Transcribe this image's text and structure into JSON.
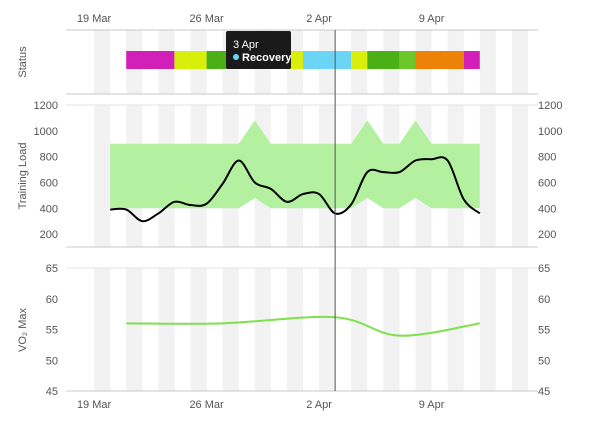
{
  "colors": {
    "band": "#b3f0a0",
    "training_line": "#000000",
    "vo2_line": "#7ee04a",
    "grid_bg": "#f2f2f2",
    "tooltip_bg": "#1a1a1a",
    "tooltip_text": "#ffffff",
    "recovery_dot": "#6cd4f5"
  },
  "tooltip": {
    "date": "3 Apr",
    "label": "Recovery"
  },
  "chart_data": [
    {
      "type": "timeline",
      "panel": "status",
      "ylabel": "Status",
      "x_ticks": [
        "19 Mar",
        "26 Mar",
        "2 Apr",
        "9 Apr"
      ],
      "x_tick_dates": [
        "2018-03-19",
        "2018-03-26",
        "2018-04-02",
        "2018-04-09"
      ],
      "crosshair_date": "2018-04-03",
      "segments": [
        {
          "start": "2018-03-21",
          "end": "2018-03-24",
          "color": "#d21fb7"
        },
        {
          "start": "2018-03-24",
          "end": "2018-03-26",
          "color": "#d8ef0b"
        },
        {
          "start": "2018-03-26",
          "end": "2018-03-28",
          "color": "#4caf16"
        },
        {
          "start": "2018-03-28",
          "end": "2018-03-31",
          "color": "#6cc72a"
        },
        {
          "start": "2018-03-31",
          "end": "2018-04-01",
          "color": "#d8ef0b"
        },
        {
          "start": "2018-04-01",
          "end": "2018-04-04",
          "color": "#6cd4f5"
        },
        {
          "start": "2018-04-04",
          "end": "2018-04-05",
          "color": "#d8ef0b"
        },
        {
          "start": "2018-04-05",
          "end": "2018-04-07",
          "color": "#4caf16"
        },
        {
          "start": "2018-04-07",
          "end": "2018-04-08",
          "color": "#6cc72a"
        },
        {
          "start": "2018-04-08",
          "end": "2018-04-11",
          "color": "#ee8208"
        },
        {
          "start": "2018-04-11",
          "end": "2018-04-12",
          "color": "#d21fb7"
        }
      ]
    },
    {
      "type": "line",
      "panel": "training-load",
      "ylabel": "Training Load",
      "ylim": [
        100,
        1200
      ],
      "y_ticks": [
        200,
        400,
        600,
        800,
        1000,
        1200
      ],
      "band": {
        "x": [
          "2018-03-20",
          "2018-03-28",
          "2018-03-29",
          "2018-03-30",
          "2018-04-04",
          "2018-04-05",
          "2018-04-06",
          "2018-04-07",
          "2018-04-08",
          "2018-04-09",
          "2018-04-12"
        ],
        "low": [
          400,
          400,
          480,
          400,
          400,
          480,
          400,
          400,
          480,
          400,
          400
        ],
        "high": [
          900,
          900,
          1080,
          900,
          900,
          1080,
          900,
          900,
          1080,
          900,
          900
        ]
      },
      "series": [
        {
          "x": [
            "2018-03-20",
            "2018-03-21",
            "2018-03-22",
            "2018-03-23",
            "2018-03-24",
            "2018-03-25",
            "2018-03-26",
            "2018-03-27",
            "2018-03-28",
            "2018-03-29",
            "2018-03-30",
            "2018-03-31",
            "2018-04-01",
            "2018-04-02",
            "2018-04-03",
            "2018-04-04",
            "2018-04-05",
            "2018-04-06",
            "2018-04-07",
            "2018-04-08",
            "2018-04-09",
            "2018-04-10",
            "2018-04-11",
            "2018-04-12"
          ],
          "values": [
            390,
            390,
            300,
            360,
            450,
            425,
            435,
            590,
            770,
            600,
            550,
            450,
            510,
            510,
            360,
            430,
            680,
            680,
            680,
            770,
            780,
            770,
            470,
            360
          ]
        }
      ]
    },
    {
      "type": "line",
      "panel": "vo2max",
      "ylabel": "VO₂ Max",
      "ylim": [
        45,
        65
      ],
      "y_ticks": [
        45,
        50,
        55,
        60,
        65
      ],
      "x_ticks": [
        "19 Mar",
        "26 Mar",
        "2 Apr",
        "9 Apr"
      ],
      "series": [
        {
          "x": [
            "2018-03-21",
            "2018-03-27",
            "2018-04-03",
            "2018-04-07",
            "2018-04-12"
          ],
          "values": [
            56,
            56,
            57,
            54,
            56
          ]
        }
      ]
    }
  ]
}
